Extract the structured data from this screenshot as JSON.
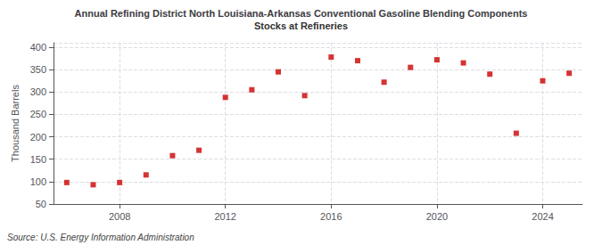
{
  "chart_data": {
    "type": "scatter",
    "title": "Annual Refining District North Louisiana-Arkansas Conventional Gasoline Blending Components",
    "subtitle": "Stocks at Refineries",
    "ylabel": "Thousand Barrels",
    "source": "Source: U.S. Energy Information Administration",
    "x": [
      2006,
      2007,
      2008,
      2009,
      2010,
      2011,
      2012,
      2013,
      2014,
      2015,
      2016,
      2017,
      2018,
      2019,
      2020,
      2021,
      2022,
      2023,
      2024,
      2025
    ],
    "values": [
      98,
      93,
      98,
      115,
      158,
      170,
      288,
      305,
      345,
      292,
      378,
      370,
      322,
      355,
      372,
      365,
      340,
      208,
      325,
      342
    ],
    "color": "#cc0000",
    "marker": "square",
    "xlim": [
      2005.5,
      2025.5
    ],
    "xticks": [
      2008,
      2012,
      2016,
      2020,
      2024
    ],
    "ylim": [
      50,
      410
    ],
    "yticks": [
      50,
      100,
      150,
      200,
      250,
      300,
      350,
      400
    ],
    "grid": true
  }
}
